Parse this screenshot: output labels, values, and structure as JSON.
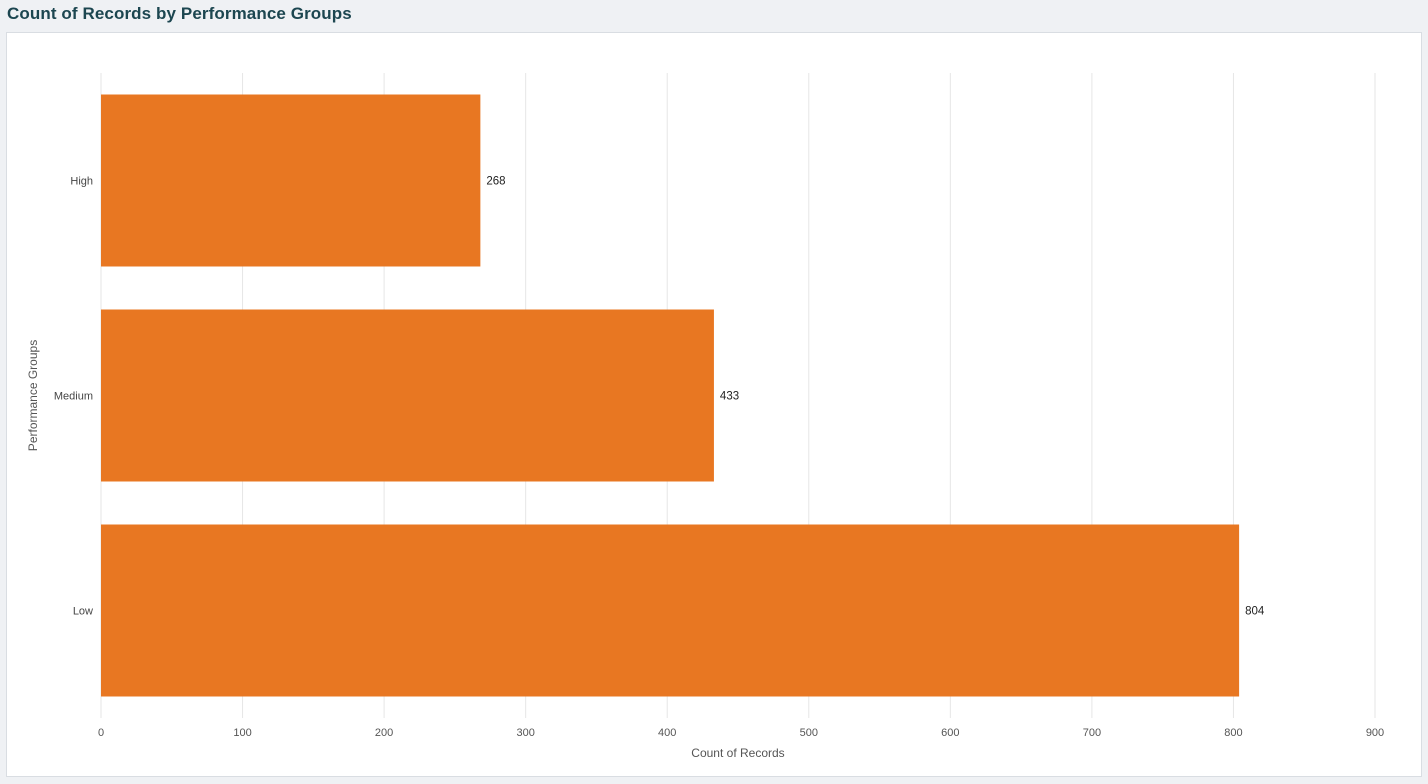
{
  "page": {
    "title": "Count of Records by Performance Groups"
  },
  "colors": {
    "bar": "#e87722",
    "grid": "#e6e6e6",
    "title": "#1c4650",
    "background": "#eff1f4",
    "panel": "#ffffff"
  },
  "chart_data": {
    "type": "bar",
    "orientation": "horizontal",
    "title": "Count of Records by Performance Groups",
    "xlabel": "Count of Records",
    "ylabel": "Performance Groups",
    "categories": [
      "High",
      "Medium",
      "Low"
    ],
    "values": [
      268,
      433,
      804
    ],
    "data_labels": [
      "268",
      "433",
      "804"
    ],
    "xlim": [
      0,
      900
    ],
    "x_ticks": [
      0,
      100,
      200,
      300,
      400,
      500,
      600,
      700,
      800,
      900
    ],
    "grid": true,
    "legend": "none"
  }
}
